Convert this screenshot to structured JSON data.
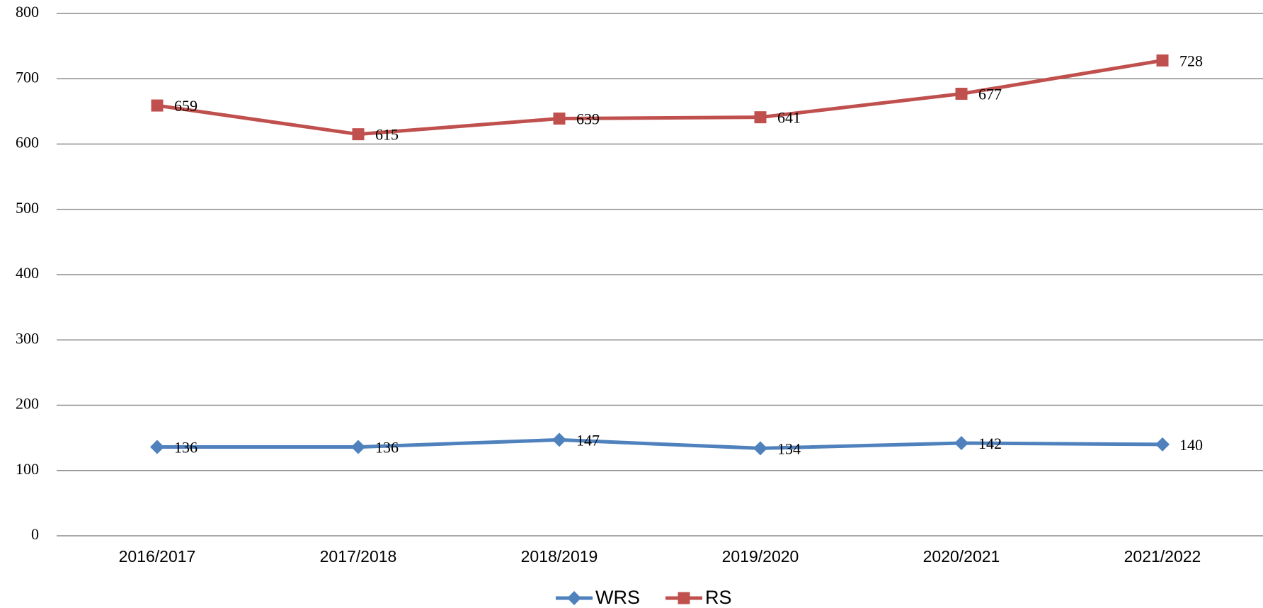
{
  "chart_data": {
    "type": "line",
    "categories": [
      "2016/2017",
      "2017/2018",
      "2018/2019",
      "2019/2020",
      "2020/2021",
      "2021/2022"
    ],
    "series": [
      {
        "name": "WRS",
        "color": "#4f81bd",
        "marker": "diamond",
        "values": [
          136,
          136,
          147,
          134,
          142,
          140
        ]
      },
      {
        "name": "RS",
        "color": "#c0504d",
        "marker": "square",
        "values": [
          659,
          615,
          639,
          641,
          677,
          728
        ]
      }
    ],
    "ylim": [
      0,
      800
    ],
    "yticks": [
      0,
      100,
      200,
      300,
      400,
      500,
      600,
      700,
      800
    ],
    "grid": true,
    "legend": "bottom"
  }
}
